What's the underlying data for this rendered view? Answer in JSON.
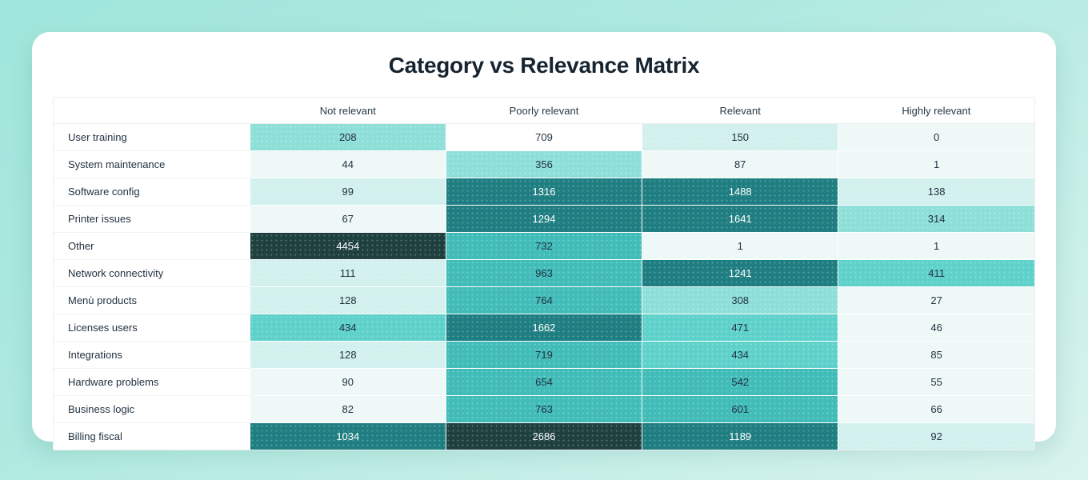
{
  "title": "Category vs Relevance Matrix",
  "chart_data": {
    "type": "heatmap",
    "title": "Category vs Relevance Matrix",
    "columns": [
      "Not relevant",
      "Poorly relevant",
      "Relevant",
      "Highly relevant"
    ],
    "rows": [
      {
        "label": "User training",
        "values": [
          208,
          709,
          150,
          0
        ],
        "bins": [
          "mlight",
          "white",
          "light",
          "xlight"
        ]
      },
      {
        "label": "System maintenance",
        "values": [
          44,
          356,
          87,
          1
        ],
        "bins": [
          "xlight",
          "mlight",
          "xlight",
          "xlight"
        ]
      },
      {
        "label": "Software config",
        "values": [
          99,
          1316,
          1488,
          138
        ],
        "bins": [
          "light",
          "dark",
          "dark",
          "light"
        ]
      },
      {
        "label": "Printer issues",
        "values": [
          67,
          1294,
          1641,
          314
        ],
        "bins": [
          "xlight",
          "dark",
          "dark",
          "mlight"
        ]
      },
      {
        "label": "Other",
        "values": [
          4454,
          732,
          1,
          1
        ],
        "bins": [
          "darkest",
          "medium",
          "xlight",
          "xlight"
        ]
      },
      {
        "label": "Network connectivity",
        "values": [
          111,
          963,
          1241,
          411
        ],
        "bins": [
          "light",
          "medium",
          "dark",
          "medium2"
        ]
      },
      {
        "label": "Menù products",
        "values": [
          128,
          764,
          308,
          27
        ],
        "bins": [
          "light",
          "medium",
          "mlight",
          "xlight"
        ]
      },
      {
        "label": "Licenses users",
        "values": [
          434,
          1662,
          471,
          46
        ],
        "bins": [
          "medium2",
          "dark",
          "medium2",
          "xlight"
        ]
      },
      {
        "label": "Integrations",
        "values": [
          128,
          719,
          434,
          85
        ],
        "bins": [
          "light",
          "medium",
          "medium2",
          "xlight"
        ]
      },
      {
        "label": "Hardware problems",
        "values": [
          90,
          654,
          542,
          55
        ],
        "bins": [
          "xlight",
          "medium",
          "medium",
          "xlight"
        ]
      },
      {
        "label": "Business logic",
        "values": [
          82,
          763,
          601,
          66
        ],
        "bins": [
          "xlight",
          "medium",
          "medium",
          "xlight"
        ]
      },
      {
        "label": "Billing fiscal",
        "values": [
          1034,
          2686,
          1189,
          92
        ],
        "bins": [
          "dark",
          "darkest",
          "dark",
          "light"
        ]
      }
    ],
    "legend": "none",
    "value_range": [
      0,
      4454
    ]
  },
  "palette": {
    "white": {
      "bg": "#ffffff",
      "text": "#223242"
    },
    "xlight": {
      "bg": "#eef8f7",
      "text": "#223242"
    },
    "light": {
      "bg": "#d2f0ed",
      "text": "#223242"
    },
    "mlight": {
      "bg": "#8fdfd9",
      "text": "#223242"
    },
    "medium2": {
      "bg": "#5fd1cb",
      "text": "#223242"
    },
    "medium": {
      "bg": "#42bcb8",
      "text": "#223242"
    },
    "dark": {
      "bg": "#1f7e81",
      "text": "#ffffff"
    },
    "darkest": {
      "bg": "#1e403f",
      "text": "#ffffff"
    }
  }
}
